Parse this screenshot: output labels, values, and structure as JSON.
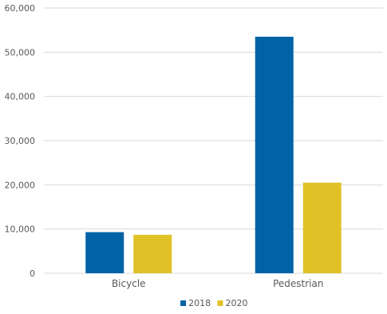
{
  "chart_data": {
    "type": "bar",
    "categories": [
      "Bicycle",
      "Pedestrian"
    ],
    "series": [
      {
        "name": "2018",
        "values": [
          9300,
          53500
        ],
        "color": "#0063a6"
      },
      {
        "name": "2020",
        "values": [
          8700,
          20500
        ],
        "color": "#e0c227"
      }
    ],
    "ylim": [
      0,
      60000
    ],
    "yticks": [
      "0",
      "10,000",
      "20,000",
      "30,000",
      "40,000",
      "50,000",
      "60,000"
    ],
    "grid": true,
    "legend_position": "bottom"
  }
}
